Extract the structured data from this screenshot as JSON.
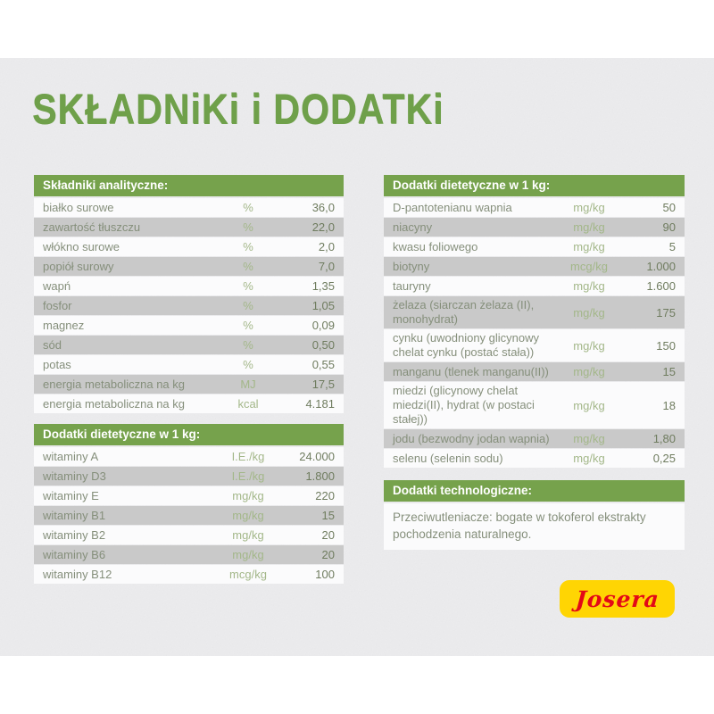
{
  "page": {
    "title": "SKŁADNiKi i DODATKi"
  },
  "colors": {
    "accent_green": "#76a24c",
    "title_green": "#6fa04a",
    "row_gray": "#c9c9c9",
    "row_white": "#fbfbfc",
    "label_text": "#858f7b",
    "unit_text": "#a3b789",
    "value_text": "#6f7c5f",
    "logo_yellow": "#ffd503",
    "logo_red": "#e30917"
  },
  "tables": {
    "analytical": {
      "header": "Składniki analityczne:",
      "rows": [
        {
          "label": "białko surowe",
          "unit": "%",
          "value": "36,0"
        },
        {
          "label": "zawartość tłuszczu",
          "unit": "%",
          "value": "22,0"
        },
        {
          "label": "włókno surowe",
          "unit": "%",
          "value": "2,0"
        },
        {
          "label": "popiół surowy",
          "unit": "%",
          "value": "7,0"
        },
        {
          "label": "wapń",
          "unit": "%",
          "value": "1,35"
        },
        {
          "label": "fosfor",
          "unit": "%",
          "value": "1,05"
        },
        {
          "label": "magnez",
          "unit": "%",
          "value": "0,09"
        },
        {
          "label": "sód",
          "unit": "%",
          "value": "0,50"
        },
        {
          "label": "potas",
          "unit": "%",
          "value": "0,55"
        },
        {
          "label": "energia metaboliczna na kg",
          "unit": "MJ",
          "value": "17,5"
        },
        {
          "label": "energia metaboliczna na kg",
          "unit": "kcal",
          "value": "4.181"
        }
      ]
    },
    "dietary_vitamins": {
      "header": "Dodatki dietetyczne w 1 kg:",
      "rows": [
        {
          "label": "witaminy A",
          "unit": "I.E./kg",
          "value": "24.000"
        },
        {
          "label": "witaminy D3",
          "unit": "I.E./kg",
          "value": "1.800"
        },
        {
          "label": "witaminy E",
          "unit": "mg/kg",
          "value": "220"
        },
        {
          "label": "witaminy B1",
          "unit": "mg/kg",
          "value": "15"
        },
        {
          "label": "witaminy B2",
          "unit": "mg/kg",
          "value": "20"
        },
        {
          "label": "witaminy B6",
          "unit": "mg/kg",
          "value": "20"
        },
        {
          "label": "witaminy B12",
          "unit": "mcg/kg",
          "value": "100"
        }
      ]
    },
    "dietary_minerals": {
      "header": "Dodatki dietetyczne w 1 kg:",
      "rows": [
        {
          "label": "D-pantotenianu wapnia",
          "unit": "mg/kg",
          "value": "50"
        },
        {
          "label": "niacyny",
          "unit": "mg/kg",
          "value": "90"
        },
        {
          "label": "kwasu foliowego",
          "unit": "mg/kg",
          "value": "5"
        },
        {
          "label": "biotyny",
          "unit": "mcg/kg",
          "value": "1.000"
        },
        {
          "label": "tauryny",
          "unit": "mg/kg",
          "value": "1.600"
        },
        {
          "label": "żelaza (siarczan żelaza (II), monohydrat)",
          "unit": "mg/kg",
          "value": "175"
        },
        {
          "label": "cynku (uwodniony glicynowy chelat cynku (postać stała))",
          "unit": "mg/kg",
          "value": "150"
        },
        {
          "label": "manganu (tlenek manganu(II))",
          "unit": "mg/kg",
          "value": "15"
        },
        {
          "label": "miedzi (glicynowy chelat miedzi(II), hydrat (w postaci stałej))",
          "unit": "mg/kg",
          "value": "18"
        },
        {
          "label": "jodu (bezwodny jodan wapnia)",
          "unit": "mg/kg",
          "value": "1,80"
        },
        {
          "label": "selenu (selenin sodu)",
          "unit": "mg/kg",
          "value": "0,25"
        }
      ]
    },
    "technological": {
      "header": "Dodatki technologiczne:",
      "text": "Przeciwutleniacze: bogate w tokoferol ekstrakty pochodzenia naturalnego."
    }
  },
  "logo": {
    "text": "Josera"
  }
}
